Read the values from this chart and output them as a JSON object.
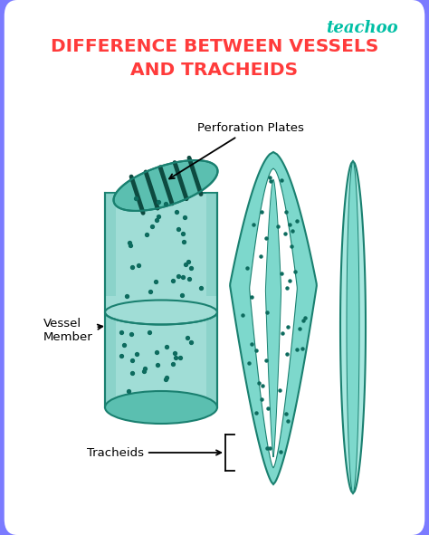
{
  "title_line1": "DIFFERENCE BETWEEN VESSELS",
  "title_line2": "AND TRACHEIDS",
  "title_color": "#FF3B3B",
  "title_fontsize": 14.5,
  "brand": "teachoo",
  "brand_color": "#00BFA5",
  "background_outer": "#7B7BFF",
  "background_inner": "#FFFFFF",
  "label_vessel_member": "Vessel\nMember",
  "label_perforation": "Perforation Plates",
  "label_tracheids": "Tracheids",
  "tracheid_fill": "#7DD8CC",
  "tracheid_fill2": "#A8E8E0",
  "tracheid_outline": "#1A8070",
  "vessel_fill": "#A0DDD6",
  "vessel_fill_dark": "#5BBFB0",
  "vessel_outline": "#1A8070",
  "dot_color": "#0D6B5E"
}
